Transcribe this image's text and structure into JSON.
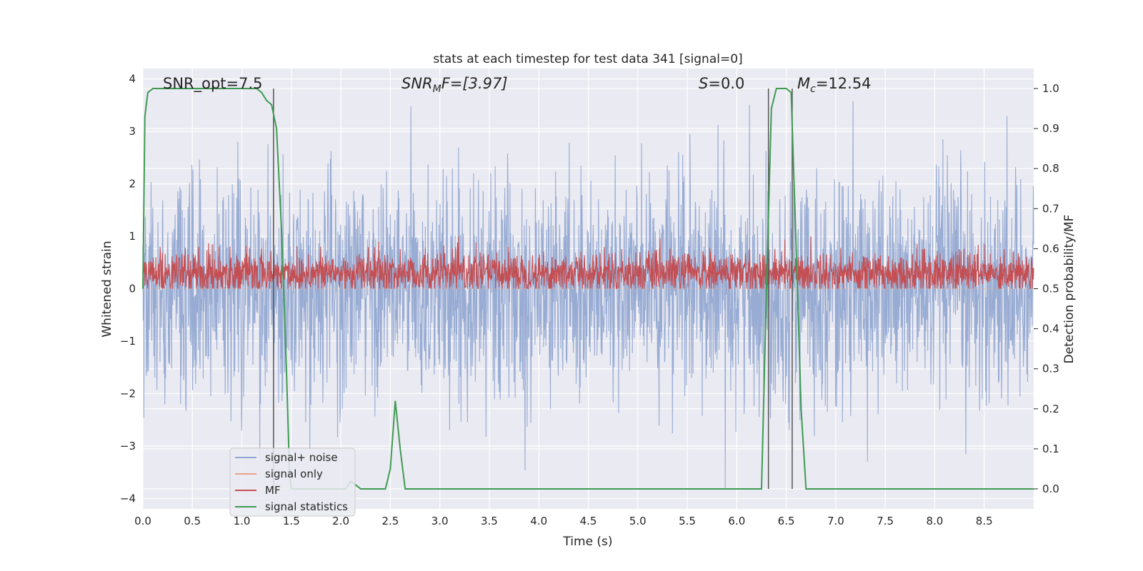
{
  "chart_data": {
    "type": "line",
    "title": "stats at each timestep for test data 341 [signal=0]",
    "xlabel": "Time (s)",
    "ylabel_left": "Whitened strain",
    "ylabel_right": "Detection probability/MF",
    "xlim": [
      0.0,
      9.0
    ],
    "ylim_left": [
      -4.2,
      4.2
    ],
    "ylim_right": [
      -0.05,
      1.05
    ],
    "x_ticks": [
      "0.0",
      "0.5",
      "1.0",
      "1.5",
      "2.0",
      "2.5",
      "3.0",
      "3.5",
      "4.0",
      "4.5",
      "5.0",
      "5.5",
      "6.0",
      "6.5",
      "7.0",
      "7.5",
      "8.0",
      "8.5"
    ],
    "y_ticks_left": [
      "−4",
      "−3",
      "−2",
      "−1",
      "0",
      "1",
      "2",
      "3",
      "4"
    ],
    "y_ticks_right": [
      "0.0",
      "0.1",
      "0.2",
      "0.3",
      "0.4",
      "0.5",
      "0.6",
      "0.7",
      "0.8",
      "0.9",
      "1.0"
    ],
    "grid": true,
    "legend_position": "lower-left",
    "annotations": {
      "snr_opt": "SNR_opt=7.5",
      "snr_mf_main": "SNR",
      "snr_mf_sub": "M",
      "snr_mf_rest": "F=[3.97]",
      "s_var": "S",
      "s_rest": "=0.0",
      "mc_var": "M",
      "mc_sub": "c",
      "mc_rest": "=12.54"
    },
    "vertical_markers_x": [
      1.32,
      6.32,
      6.56
    ],
    "series": [
      {
        "name": "signal+ noise",
        "color": "#92a8d1",
        "axis": "left",
        "description_values": {
          "approx_range": [
            -3.8,
            3.6
          ],
          "center": 0.0
        }
      },
      {
        "name": "signal only",
        "color": "#e8a58a",
        "axis": "left",
        "description_values": {
          "constant": 0.0
        }
      },
      {
        "name": "MF",
        "color": "#c44e52",
        "axis": "left",
        "description_values": {
          "approx_range": [
            0.0,
            1.0
          ],
          "center": 0.3
        }
      },
      {
        "name": "signal statistics",
        "color": "#3f9b53",
        "axis": "right",
        "x": [
          0.0,
          0.02,
          0.05,
          0.1,
          0.2,
          0.3,
          0.6,
          0.9,
          1.15,
          1.2,
          1.25,
          1.3,
          1.35,
          1.4,
          1.45,
          1.48,
          1.5,
          1.6,
          1.8,
          2.0,
          2.05,
          2.1,
          2.15,
          2.2,
          2.3,
          2.45,
          2.5,
          2.55,
          2.6,
          2.65,
          2.8,
          3.5,
          4.5,
          5.5,
          6.0,
          6.25,
          6.3,
          6.35,
          6.4,
          6.5,
          6.55,
          6.6,
          6.65,
          6.7,
          7.0,
          8.0,
          9.0
        ],
        "y": [
          0.5,
          0.93,
          0.99,
          1.0,
          1.0,
          1.0,
          1.0,
          1.0,
          1.0,
          0.99,
          0.97,
          0.96,
          0.9,
          0.65,
          0.3,
          0.05,
          0.0,
          0.0,
          0.0,
          0.0,
          0.0,
          0.02,
          0.01,
          0.0,
          0.0,
          0.0,
          0.05,
          0.22,
          0.1,
          0.0,
          0.0,
          0.0,
          0.0,
          0.0,
          0.0,
          0.0,
          0.5,
          0.95,
          1.0,
          1.0,
          0.99,
          0.6,
          0.2,
          0.0,
          0.0,
          0.0,
          0.0
        ]
      }
    ]
  }
}
